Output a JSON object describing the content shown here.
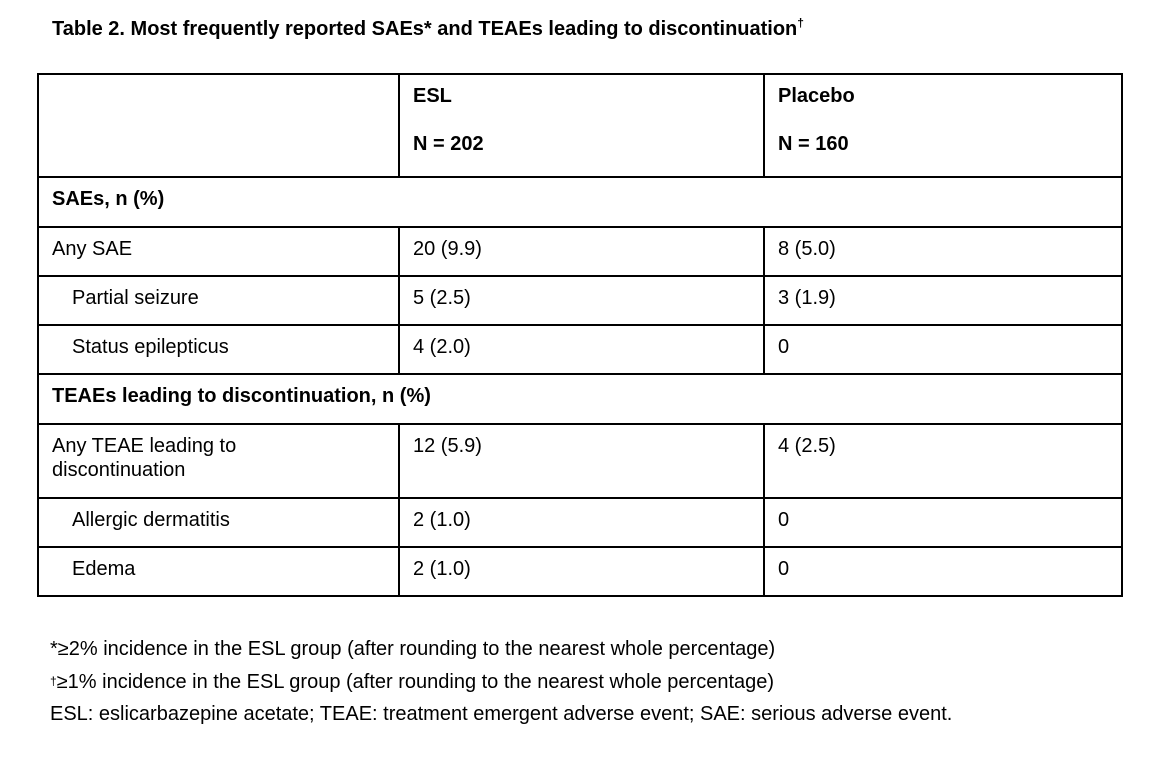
{
  "page": {
    "background_color": "#ffffff",
    "text_color": "#000000"
  },
  "title": {
    "text": "Table 2. Most frequently reported SAEs* and TEAEs leading to discontinuation",
    "superscript_marker": "†"
  },
  "table": {
    "columns": [
      {
        "header_line1": "",
        "header_line2": ""
      },
      {
        "header_line1": "ESL",
        "header_line2": "N = 202"
      },
      {
        "header_line1": "Placebo",
        "header_line2": "N = 160"
      }
    ],
    "rows": [
      {
        "type": "section",
        "label": "SAEs, n (%)"
      },
      {
        "type": "data",
        "indent": false,
        "label": "Any SAE",
        "esl": "20 (9.9)",
        "placebo": "8 (5.0)"
      },
      {
        "type": "data",
        "indent": true,
        "label": "Partial seizure",
        "esl": "5 (2.5)",
        "placebo": "3 (1.9)"
      },
      {
        "type": "data",
        "indent": true,
        "label": "Status epilepticus",
        "esl": "4 (2.0)",
        "placebo": "0"
      },
      {
        "type": "section",
        "label": "TEAEs leading to discontinuation, n (%)"
      },
      {
        "type": "data",
        "indent": false,
        "label": "Any TEAE leading to discontinuation",
        "esl": "12 (5.9)",
        "placebo": "4 (2.5)"
      },
      {
        "type": "data",
        "indent": true,
        "label": "Allergic dermatitis",
        "esl": "2 (1.0)",
        "placebo": "0"
      },
      {
        "type": "data",
        "indent": true,
        "label": "Edema",
        "esl": "2 (1.0)",
        "placebo": "0"
      }
    ]
  },
  "footnotes": [
    {
      "marker": "*",
      "marker_superscript": false,
      "text": "≥2% incidence in the ESL group (after rounding to the nearest whole percentage)"
    },
    {
      "marker": "†",
      "marker_superscript": true,
      "text": "≥1% incidence in the ESL group (after rounding to the nearest whole percentage)"
    },
    {
      "marker": "",
      "marker_superscript": false,
      "text": "ESL: eslicarbazepine acetate; TEAE: treatment emergent adverse event; SAE: serious adverse event."
    }
  ]
}
